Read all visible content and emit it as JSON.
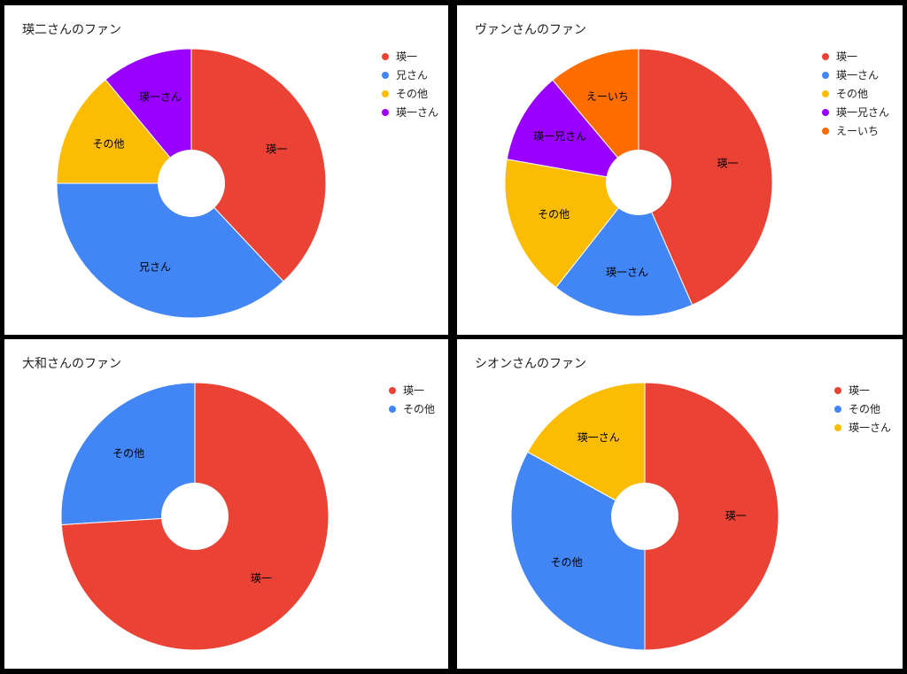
{
  "chart_data": [
    {
      "type": "pie",
      "title": "瑛二さんのファン",
      "hole": true,
      "legend_position": "right",
      "slices": [
        {
          "label": "瑛一",
          "value": 38,
          "color": "#ea4335"
        },
        {
          "label": "兄さん",
          "value": 37,
          "color": "#4285f4"
        },
        {
          "label": "その他",
          "value": 14,
          "color": "#fbbc04"
        },
        {
          "label": "瑛一さん",
          "value": 11,
          "color": "#9900ff"
        }
      ]
    },
    {
      "type": "pie",
      "title": "ヴァンさんのファン",
      "hole": true,
      "legend_position": "right",
      "slices": [
        {
          "label": "瑛一",
          "value": 43,
          "color": "#ea4335"
        },
        {
          "label": "瑛一さん",
          "value": 17,
          "color": "#4285f4"
        },
        {
          "label": "その他",
          "value": 17,
          "color": "#fbbc04"
        },
        {
          "label": "瑛一兄さん",
          "value": 11,
          "color": "#9900ff"
        },
        {
          "label": "えーいち",
          "value": 11,
          "color": "#ff6d01"
        }
      ]
    },
    {
      "type": "pie",
      "title": "大和さんのファン",
      "hole": true,
      "legend_position": "right",
      "slices": [
        {
          "label": "瑛一",
          "value": 74,
          "color": "#ea4335"
        },
        {
          "label": "その他",
          "value": 26,
          "color": "#4285f4"
        }
      ]
    },
    {
      "type": "pie",
      "title": "シオンさんのファン",
      "hole": true,
      "legend_position": "right",
      "slices": [
        {
          "label": "瑛一",
          "value": 50,
          "color": "#ea4335"
        },
        {
          "label": "その他",
          "value": 33,
          "color": "#4285f4"
        },
        {
          "label": "瑛一さん",
          "value": 17,
          "color": "#fbbc04"
        }
      ]
    }
  ]
}
